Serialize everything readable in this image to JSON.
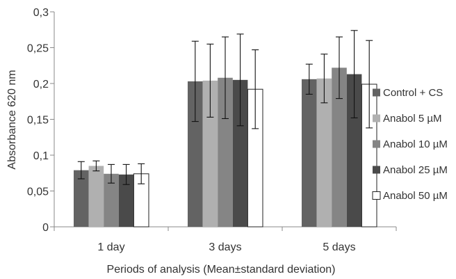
{
  "chart_data": {
    "type": "bar",
    "title": "",
    "xlabel": "Periods of analysis (Mean±standard deviation)",
    "ylabel": "Absorbance 620 nm",
    "ylim": [
      0,
      0.3
    ],
    "yticks": [
      0,
      0.05,
      0.1,
      0.15,
      0.2,
      0.25,
      0.3
    ],
    "ytick_labels": [
      "0",
      "0,05",
      "0,1",
      "0,15",
      "0,2",
      "0,25",
      "0,3"
    ],
    "categories": [
      "1 day",
      "3 days",
      "5 days"
    ],
    "grid": false,
    "legend_position": "right",
    "series": [
      {
        "name": "Control + CS",
        "color": "#636363",
        "values": [
          0.079,
          0.203,
          0.206
        ],
        "error": [
          0.012,
          0.056,
          0.021
        ]
      },
      {
        "name": "Anabol 5 µM",
        "color": "#b0b0b0",
        "values": [
          0.085,
          0.204,
          0.207
        ],
        "error": [
          0.007,
          0.051,
          0.034
        ]
      },
      {
        "name": "Anabol 10 µM",
        "color": "#858585",
        "values": [
          0.074,
          0.208,
          0.222
        ],
        "error": [
          0.013,
          0.057,
          0.043
        ]
      },
      {
        "name": "Anabol 25 µM",
        "color": "#4a4a4a",
        "values": [
          0.073,
          0.205,
          0.213
        ],
        "error": [
          0.014,
          0.064,
          0.061
        ]
      },
      {
        "name": "Anabol 50 µM",
        "color": "#ffffff",
        "values": [
          0.074,
          0.192,
          0.199
        ],
        "error": [
          0.014,
          0.055,
          0.061
        ]
      }
    ]
  }
}
